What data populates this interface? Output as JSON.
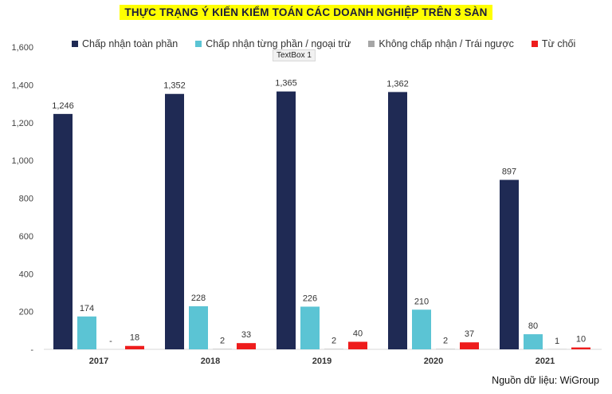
{
  "title": "THỰC TRẠNG Ý KIẾN KIỂM TOÁN CÁC DOANH NGHIỆP TRÊN 3 SÀN",
  "textbox": "TextBox 1",
  "source": "Nguồn dữ liệu: WiGroup",
  "chart_data": {
    "type": "bar",
    "categories": [
      "2017",
      "2018",
      "2019",
      "2020",
      "2021"
    ],
    "ylim": [
      0,
      1600
    ],
    "yticks": [
      {
        "value": 0,
        "label": "-"
      },
      {
        "value": 200,
        "label": "200"
      },
      {
        "value": 400,
        "label": "400"
      },
      {
        "value": 600,
        "label": "600"
      },
      {
        "value": 800,
        "label": "800"
      },
      {
        "value": 1000,
        "label": "1,000"
      },
      {
        "value": 1200,
        "label": "1,200"
      },
      {
        "value": 1400,
        "label": "1,400"
      },
      {
        "value": 1600,
        "label": "1,600"
      }
    ],
    "legend_position": "top",
    "grid": false,
    "series": [
      {
        "name": "Chấp nhận toàn phần",
        "color": "#1f2a54",
        "values": [
          1246,
          1352,
          1365,
          1362,
          897
        ],
        "labels": [
          "1,246",
          "1,352",
          "1,365",
          "1,362",
          "897"
        ]
      },
      {
        "name": "Chấp nhận từng phần / ngoại trừ",
        "color": "#5bc4d4",
        "values": [
          174,
          228,
          226,
          210,
          80
        ],
        "labels": [
          "174",
          "228",
          "226",
          "210",
          "80"
        ]
      },
      {
        "name": "Không chấp nhận / Trái ngược",
        "color": "#a6a6a6",
        "values": [
          0,
          2,
          2,
          2,
          1
        ],
        "labels": [
          "-",
          "2",
          "2",
          "2",
          "1"
        ]
      },
      {
        "name": "Từ chối",
        "color": "#ee1c1c",
        "values": [
          18,
          33,
          40,
          37,
          10
        ],
        "labels": [
          "18",
          "33",
          "40",
          "37",
          "10"
        ]
      }
    ]
  }
}
